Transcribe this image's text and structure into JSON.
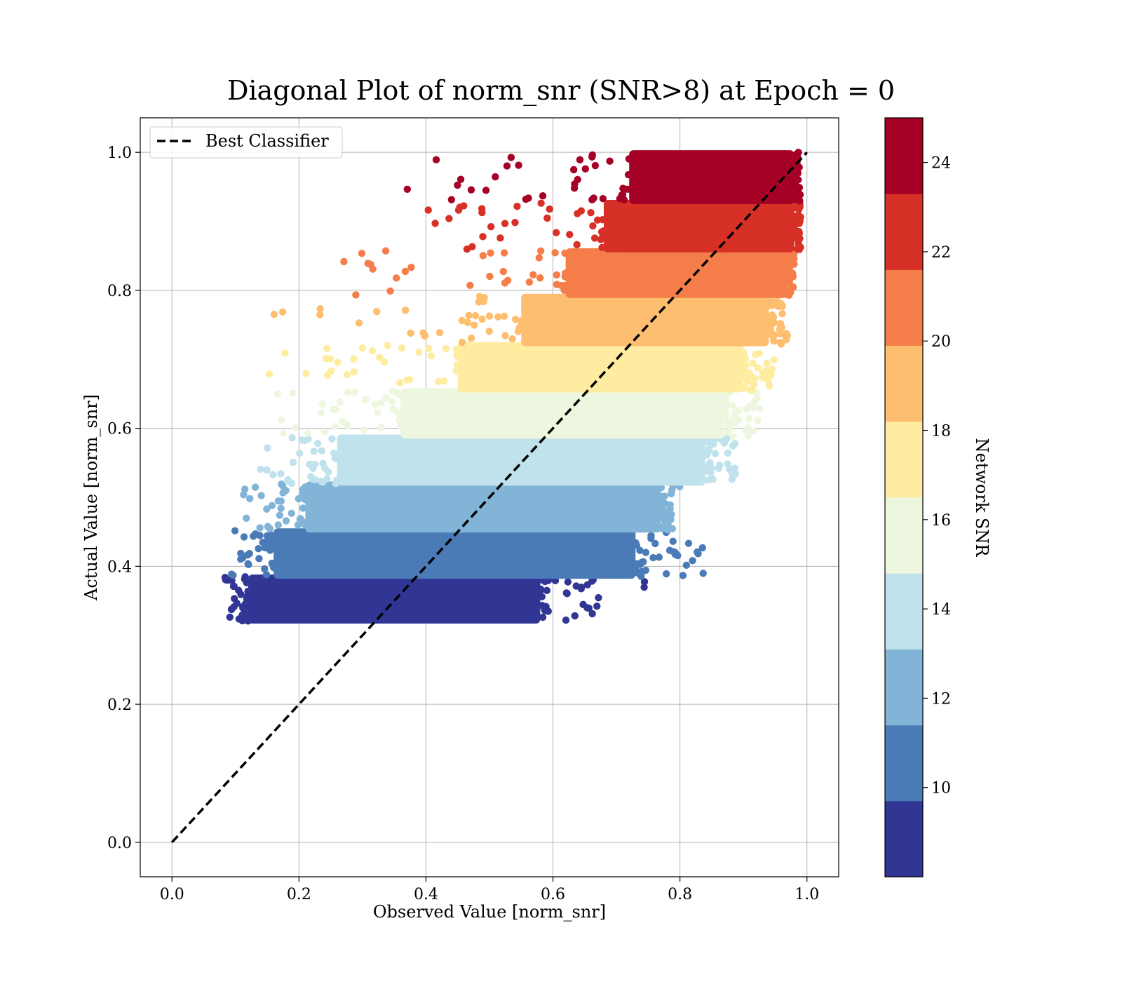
{
  "chart_data": {
    "type": "scatter",
    "title": "Diagonal Plot of norm_snr (SNR>8) at Epoch = 0",
    "xlabel": "Observed Value [norm_snr]",
    "ylabel": "Actual Value [norm_snr]",
    "xlim": [
      -0.05,
      1.05
    ],
    "ylim": [
      -0.05,
      1.05
    ],
    "x_ticks": [
      "0.0",
      "0.2",
      "0.4",
      "0.6",
      "0.8",
      "1.0"
    ],
    "y_ticks": [
      "0.0",
      "0.2",
      "0.4",
      "0.6",
      "0.8",
      "1.0"
    ],
    "grid": true,
    "legend": {
      "placement": "upper-left",
      "entries": [
        "Best Classifier"
      ]
    },
    "reference_line": {
      "name": "Best Classifier",
      "x": [
        0,
        1
      ],
      "y": [
        0,
        1
      ],
      "style": "dashed",
      "color": "#000000"
    },
    "colorbar": {
      "label": "Network SNR",
      "range": [
        8,
        25
      ],
      "ticks": [
        "10",
        "12",
        "14",
        "16",
        "18",
        "20",
        "22",
        "24"
      ],
      "boundaries": [
        8,
        9.7,
        11.4,
        13.1,
        14.8,
        16.5,
        18.2,
        19.9,
        21.6,
        23.3,
        25
      ],
      "colors": [
        "#313695",
        "#4a7bb7",
        "#81b4d6",
        "#bfe2ec",
        "#edf7e0",
        "#feeda1",
        "#fdbe6f",
        "#f47d4a",
        "#d73027",
        "#a50026"
      ]
    },
    "bands": [
      {
        "snr": 9,
        "y": [
          0.32,
          0.385
        ],
        "x_core": [
          0.12,
          0.58
        ],
        "x_min": 0.08,
        "x_max": 0.75
      },
      {
        "snr": 10.5,
        "y": [
          0.385,
          0.452
        ],
        "x_core": [
          0.16,
          0.73
        ],
        "x_min": 0.09,
        "x_max": 0.85
      },
      {
        "snr": 12.3,
        "y": [
          0.452,
          0.52
        ],
        "x_core": [
          0.21,
          0.77
        ],
        "x_min": 0.11,
        "x_max": 0.8
      },
      {
        "snr": 14,
        "y": [
          0.52,
          0.588
        ],
        "x_core": [
          0.26,
          0.84
        ],
        "x_min": 0.13,
        "x_max": 0.89
      },
      {
        "snr": 15.6,
        "y": [
          0.588,
          0.655
        ],
        "x_core": [
          0.36,
          0.87
        ],
        "x_min": 0.14,
        "x_max": 0.93
      },
      {
        "snr": 17.3,
        "y": [
          0.655,
          0.722
        ],
        "x_core": [
          0.45,
          0.9
        ],
        "x_min": 0.15,
        "x_max": 0.95
      },
      {
        "snr": 19,
        "y": [
          0.722,
          0.792
        ],
        "x_core": [
          0.55,
          0.94
        ],
        "x_min": 0.14,
        "x_max": 0.97
      },
      {
        "snr": 20.7,
        "y": [
          0.792,
          0.858
        ],
        "x_core": [
          0.62,
          0.97
        ],
        "x_min": 0.27,
        "x_max": 0.98
      },
      {
        "snr": 22.4,
        "y": [
          0.858,
          0.928
        ],
        "x_core": [
          0.68,
          0.98
        ],
        "x_min": 0.39,
        "x_max": 0.99
      },
      {
        "snr": 24.2,
        "y": [
          0.928,
          1.0
        ],
        "x_core": [
          0.72,
          0.98
        ],
        "x_min": 0.36,
        "x_max": 0.99
      }
    ]
  }
}
